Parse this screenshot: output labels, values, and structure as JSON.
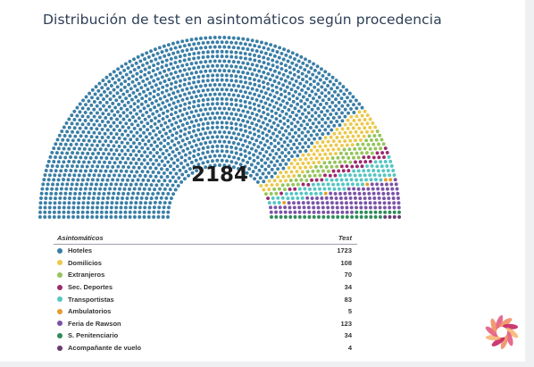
{
  "title": "Distribución de test en asintomáticos según procedencia",
  "total": "2184",
  "legend_header": {
    "category": "Asintomáticos",
    "value": "Test"
  },
  "chart_data": {
    "type": "parliament",
    "title": "Distribución de test en asintomáticos según procedencia",
    "total": 2184,
    "categories": [
      "Hoteles",
      "Domilicios",
      "Extranjeros",
      "Sec. Deportes",
      "Transportistas",
      "Ambulatorios",
      "Feria de Rawson",
      "S. Penitenciario",
      "Acompañante de vuelo"
    ],
    "values": [
      1723,
      108,
      70,
      34,
      83,
      5,
      123,
      34,
      4
    ],
    "colors": [
      "#3a7ea6",
      "#ecc84a",
      "#94c55a",
      "#9c2a6e",
      "#55c6c3",
      "#e89a2b",
      "#7a53a6",
      "#2f8a58",
      "#6a3a70"
    ]
  },
  "legend": [
    {
      "label": "Hoteles",
      "value": "1723",
      "color": "#3a7ea6"
    },
    {
      "label": "Domilicios",
      "value": "108",
      "color": "#ecc84a"
    },
    {
      "label": "Extranjeros",
      "value": "70",
      "color": "#94c55a"
    },
    {
      "label": "Sec. Deportes",
      "value": "34",
      "color": "#9c2a6e"
    },
    {
      "label": "Transportistas",
      "value": "83",
      "color": "#55c6c3"
    },
    {
      "label": "Ambulatorios",
      "value": "5",
      "color": "#e89a2b"
    },
    {
      "label": "Feria de Rawson",
      "value": "123",
      "color": "#7a53a6"
    },
    {
      "label": "S. Penitenciario",
      "value": "34",
      "color": "#2f8a58"
    },
    {
      "label": "Acompañante de vuelo",
      "value": "4",
      "color": "#6a3a70"
    }
  ],
  "logo_colors": [
    "#e0527a",
    "#f08a5d",
    "#c2185b",
    "#f6b26b"
  ]
}
